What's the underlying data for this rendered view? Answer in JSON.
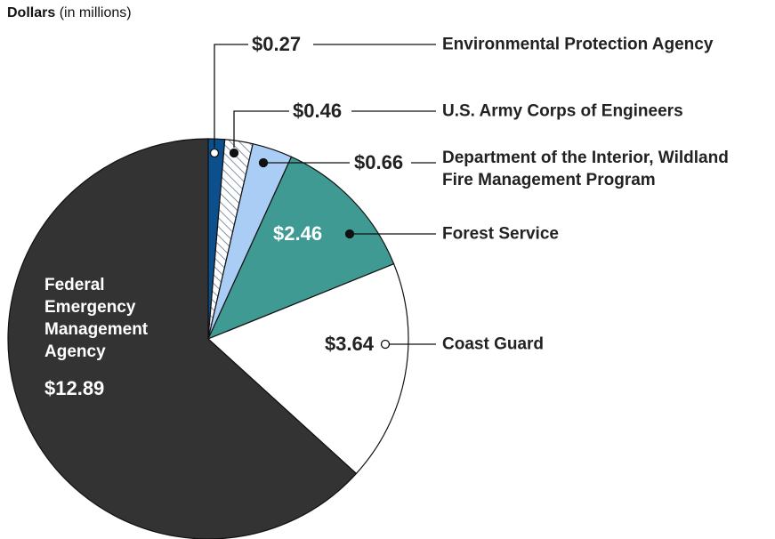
{
  "chart_data": {
    "type": "pie",
    "title": "Dollars",
    "subtitle": "(in millions)",
    "categories": [
      "Environmental Protection Agency",
      "U.S. Army Corps of Engineers",
      "Department of the Interior, Wildland Fire Management Program",
      "Forest Service",
      "Coast Guard",
      "Federal Emergency Management Agency"
    ],
    "values": [
      0.27,
      0.46,
      0.66,
      2.46,
      3.64,
      12.89
    ],
    "value_labels": [
      "$0.27",
      "$0.46",
      "$0.66",
      "$2.46",
      "$3.64",
      "$12.89"
    ],
    "colors": [
      "#0b4f8c",
      "#ffffff",
      "#a9cdf5",
      "#3e9a92",
      "#ffffff",
      "#333333"
    ],
    "hatch": [
      false,
      true,
      false,
      false,
      false,
      false
    ],
    "start_angle": 0,
    "direction": "clockwise"
  }
}
